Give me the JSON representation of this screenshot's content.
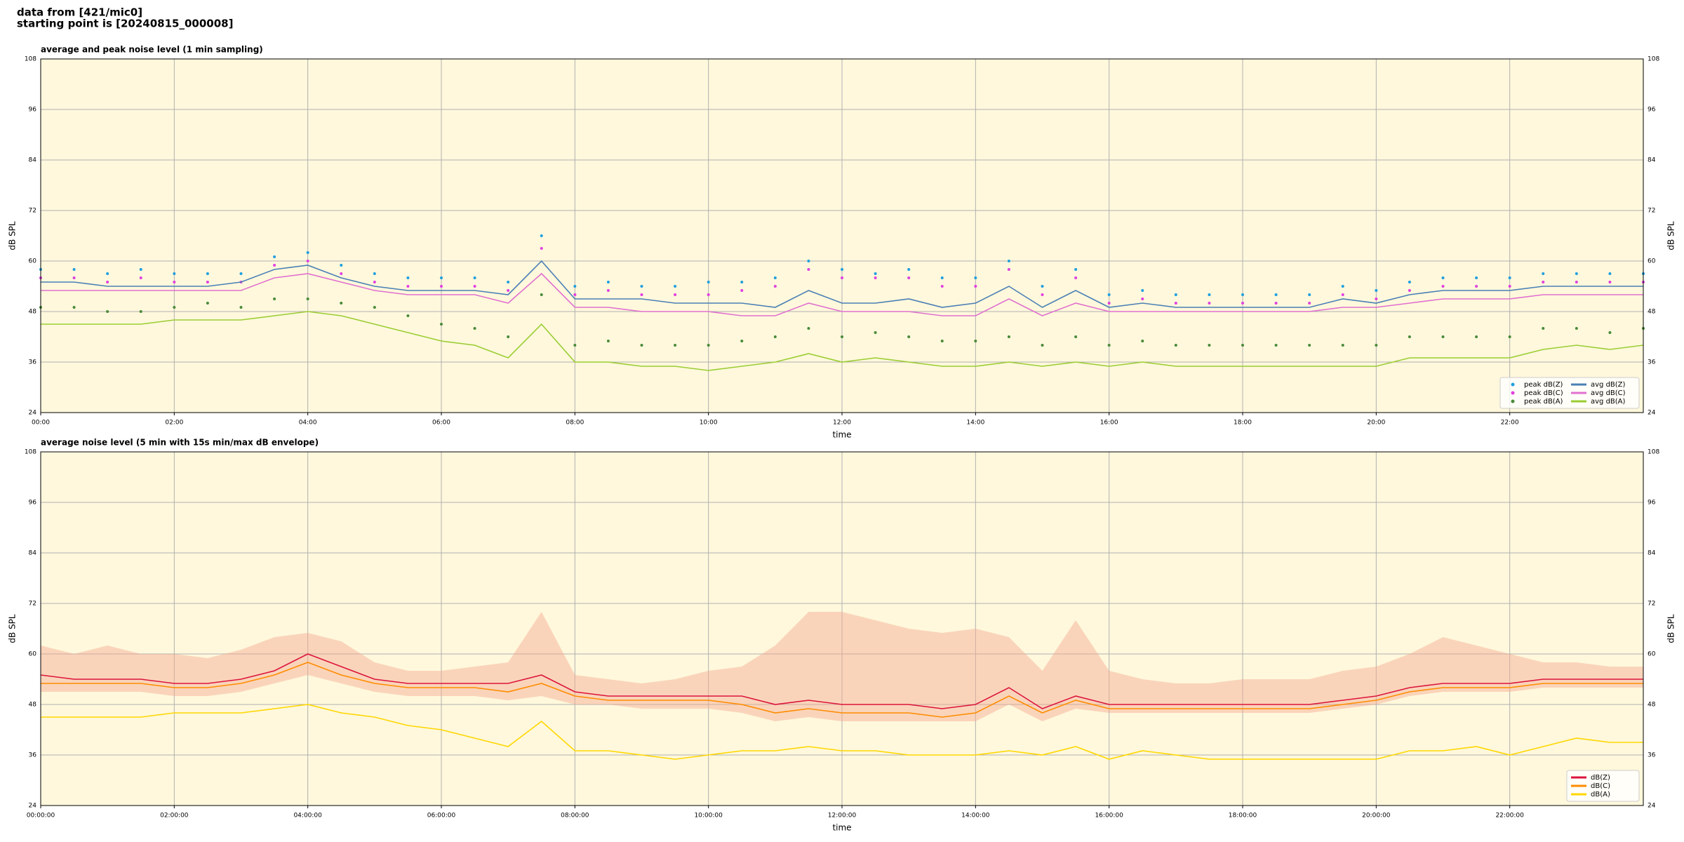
{
  "suptitle": [
    "data from [421/mic0]",
    "starting point is [20240815_000008]"
  ],
  "chart_data": [
    {
      "type": "line",
      "title": "average and peak noise level (1 min sampling)",
      "xlabel": "time",
      "ylabel": "dB SPL",
      "x": [
        0,
        0.5,
        1,
        1.5,
        2,
        2.5,
        3,
        3.5,
        4,
        4.5,
        5,
        5.5,
        6,
        6.5,
        7,
        7.5,
        8,
        8.5,
        9,
        9.5,
        10,
        10.5,
        11,
        11.5,
        12,
        12.5,
        13,
        13.5,
        14,
        14.5,
        15,
        15.5,
        16,
        16.5,
        17,
        17.5,
        18,
        18.5,
        19,
        19.5,
        20,
        20.5,
        21,
        21.5,
        22,
        22.5,
        23,
        23.5,
        24
      ],
      "xlim": [
        0,
        24
      ],
      "xticks": [
        {
          "value": 0,
          "label": "00:00"
        },
        {
          "value": 2,
          "label": "02:00"
        },
        {
          "value": 4,
          "label": "04:00"
        },
        {
          "value": 6,
          "label": "06:00"
        },
        {
          "value": 8,
          "label": "08:00"
        },
        {
          "value": 10,
          "label": "10:00"
        },
        {
          "value": 12,
          "label": "12:00"
        },
        {
          "value": 14,
          "label": "14:00"
        },
        {
          "value": 16,
          "label": "16:00"
        },
        {
          "value": 18,
          "label": "18:00"
        },
        {
          "value": 20,
          "label": "20:00"
        },
        {
          "value": 22,
          "label": "22:00"
        }
      ],
      "ylim": [
        24,
        108
      ],
      "yticks": [
        24,
        36,
        48,
        60,
        72,
        84,
        96,
        108
      ],
      "grid": true,
      "legend": "lower right",
      "legend_columns": 2,
      "series": [
        {
          "name": "peak dB(Z)",
          "type": "scatter",
          "color": "#1f9fdf",
          "values": [
            58,
            58,
            57,
            58,
            57,
            57,
            57,
            61,
            62,
            59,
            57,
            56,
            56,
            56,
            55,
            66,
            54,
            55,
            54,
            54,
            55,
            55,
            56,
            60,
            58,
            57,
            58,
            56,
            56,
            60,
            54,
            58,
            52,
            53,
            52,
            52,
            52,
            52,
            52,
            54,
            53,
            55,
            56,
            56,
            56,
            57,
            57,
            57,
            57
          ]
        },
        {
          "name": "peak dB(C)",
          "type": "scatter",
          "color": "#e040e0",
          "values": [
            56,
            56,
            55,
            56,
            55,
            55,
            55,
            59,
            60,
            57,
            55,
            54,
            54,
            54,
            53,
            63,
            52,
            53,
            52,
            52,
            52,
            53,
            54,
            58,
            56,
            56,
            56,
            54,
            54,
            58,
            52,
            56,
            50,
            51,
            50,
            50,
            50,
            50,
            50,
            52,
            51,
            53,
            54,
            54,
            54,
            55,
            55,
            55,
            55
          ]
        },
        {
          "name": "peak dB(A)",
          "type": "scatter",
          "color": "#4a8a3a",
          "values": [
            49,
            49,
            48,
            48,
            49,
            50,
            49,
            51,
            51,
            50,
            49,
            47,
            45,
            44,
            42,
            52,
            40,
            41,
            40,
            40,
            40,
            41,
            42,
            44,
            42,
            43,
            42,
            41,
            41,
            42,
            40,
            42,
            40,
            41,
            40,
            40,
            40,
            40,
            40,
            40,
            40,
            42,
            42,
            42,
            42,
            44,
            44,
            43,
            44
          ]
        },
        {
          "name": "avg dB(Z)",
          "type": "line",
          "color": "#4a7fb5",
          "values": [
            55,
            55,
            54,
            54,
            54,
            54,
            55,
            58,
            59,
            56,
            54,
            53,
            53,
            53,
            52,
            60,
            51,
            51,
            51,
            50,
            50,
            50,
            49,
            53,
            50,
            50,
            51,
            49,
            50,
            54,
            49,
            53,
            49,
            50,
            49,
            49,
            49,
            49,
            49,
            51,
            50,
            52,
            53,
            53,
            53,
            54,
            54,
            54,
            54
          ]
        },
        {
          "name": "avg dB(C)",
          "type": "line",
          "color": "#e070d0",
          "values": [
            53,
            53,
            53,
            53,
            53,
            53,
            53,
            56,
            57,
            55,
            53,
            52,
            52,
            52,
            50,
            57,
            49,
            49,
            48,
            48,
            48,
            47,
            47,
            50,
            48,
            48,
            48,
            47,
            47,
            51,
            47,
            50,
            48,
            48,
            48,
            48,
            48,
            48,
            48,
            49,
            49,
            50,
            51,
            51,
            51,
            52,
            52,
            52,
            52
          ]
        },
        {
          "name": "avg dB(A)",
          "type": "line",
          "color": "#9acd32",
          "values": [
            45,
            45,
            45,
            45,
            46,
            46,
            46,
            47,
            48,
            47,
            45,
            43,
            41,
            40,
            37,
            45,
            36,
            36,
            35,
            35,
            34,
            35,
            36,
            38,
            36,
            37,
            36,
            35,
            35,
            36,
            35,
            36,
            35,
            36,
            35,
            35,
            35,
            35,
            35,
            35,
            35,
            37,
            37,
            37,
            37,
            39,
            40,
            39,
            40
          ]
        }
      ]
    },
    {
      "type": "line",
      "title": "average noise level (5 min with 15s min/max dB envelope)",
      "xlabel": "time",
      "ylabel": "dB SPL",
      "x": [
        0,
        0.5,
        1,
        1.5,
        2,
        2.5,
        3,
        3.5,
        4,
        4.5,
        5,
        5.5,
        6,
        6.5,
        7,
        7.5,
        8,
        8.5,
        9,
        9.5,
        10,
        10.5,
        11,
        11.5,
        12,
        12.5,
        13,
        13.5,
        14,
        14.5,
        15,
        15.5,
        16,
        16.5,
        17,
        17.5,
        18,
        18.5,
        19,
        19.5,
        20,
        20.5,
        21,
        21.5,
        22,
        22.5,
        23,
        23.5,
        24
      ],
      "xlim": [
        0,
        24
      ],
      "xticks": [
        {
          "value": 0,
          "label": "00:00:00"
        },
        {
          "value": 2,
          "label": "02:00:00"
        },
        {
          "value": 4,
          "label": "04:00:00"
        },
        {
          "value": 6,
          "label": "06:00:00"
        },
        {
          "value": 8,
          "label": "08:00:00"
        },
        {
          "value": 10,
          "label": "10:00:00"
        },
        {
          "value": 12,
          "label": "12:00:00"
        },
        {
          "value": 14,
          "label": "14:00:00"
        },
        {
          "value": 16,
          "label": "16:00:00"
        },
        {
          "value": 18,
          "label": "18:00:00"
        },
        {
          "value": 20,
          "label": "20:00:00"
        },
        {
          "value": 22,
          "label": "22:00:00"
        }
      ],
      "ylim": [
        24,
        108
      ],
      "yticks": [
        24,
        36,
        48,
        60,
        72,
        84,
        96,
        108
      ],
      "grid": true,
      "legend": "lower right",
      "legend_columns": 1,
      "envelope": {
        "color": "#f4a890",
        "max": [
          62,
          60,
          62,
          60,
          60,
          59,
          61,
          64,
          65,
          63,
          58,
          56,
          56,
          57,
          58,
          70,
          55,
          54,
          53,
          54,
          56,
          57,
          62,
          70,
          70,
          68,
          66,
          65,
          66,
          64,
          56,
          68,
          56,
          54,
          53,
          53,
          54,
          54,
          54,
          56,
          57,
          60,
          64,
          62,
          60,
          58,
          58,
          57,
          57
        ],
        "min": [
          51,
          51,
          51,
          51,
          50,
          50,
          51,
          53,
          55,
          53,
          51,
          50,
          50,
          50,
          49,
          50,
          48,
          48,
          47,
          47,
          47,
          46,
          44,
          45,
          44,
          44,
          44,
          44,
          44,
          48,
          44,
          47,
          46,
          46,
          46,
          46,
          46,
          46,
          46,
          47,
          48,
          50,
          51,
          51,
          51,
          52,
          52,
          52,
          52
        ]
      },
      "series": [
        {
          "name": "dB(Z)",
          "type": "line",
          "color": "#dc143c",
          "values": [
            55,
            54,
            54,
            54,
            53,
            53,
            54,
            56,
            60,
            57,
            54,
            53,
            53,
            53,
            53,
            55,
            51,
            50,
            50,
            50,
            50,
            50,
            48,
            49,
            48,
            48,
            48,
            47,
            48,
            52,
            47,
            50,
            48,
            48,
            48,
            48,
            48,
            48,
            48,
            49,
            50,
            52,
            53,
            53,
            53,
            54,
            54,
            54,
            54
          ]
        },
        {
          "name": "dB(C)",
          "type": "line",
          "color": "#ff8c00",
          "values": [
            53,
            53,
            53,
            53,
            52,
            52,
            53,
            55,
            58,
            55,
            53,
            52,
            52,
            52,
            51,
            53,
            50,
            49,
            49,
            49,
            49,
            48,
            46,
            47,
            46,
            46,
            46,
            45,
            46,
            50,
            46,
            49,
            47,
            47,
            47,
            47,
            47,
            47,
            47,
            48,
            49,
            51,
            52,
            52,
            52,
            53,
            53,
            53,
            53
          ]
        },
        {
          "name": "dB(A)",
          "type": "line",
          "color": "#ffd700",
          "values": [
            45,
            45,
            45,
            45,
            46,
            46,
            46,
            47,
            48,
            46,
            45,
            43,
            42,
            40,
            38,
            44,
            37,
            37,
            36,
            35,
            36,
            37,
            37,
            38,
            37,
            37,
            36,
            36,
            36,
            37,
            36,
            38,
            35,
            37,
            36,
            35,
            35,
            35,
            35,
            35,
            35,
            37,
            37,
            38,
            36,
            38,
            40,
            39,
            39
          ]
        }
      ]
    }
  ]
}
